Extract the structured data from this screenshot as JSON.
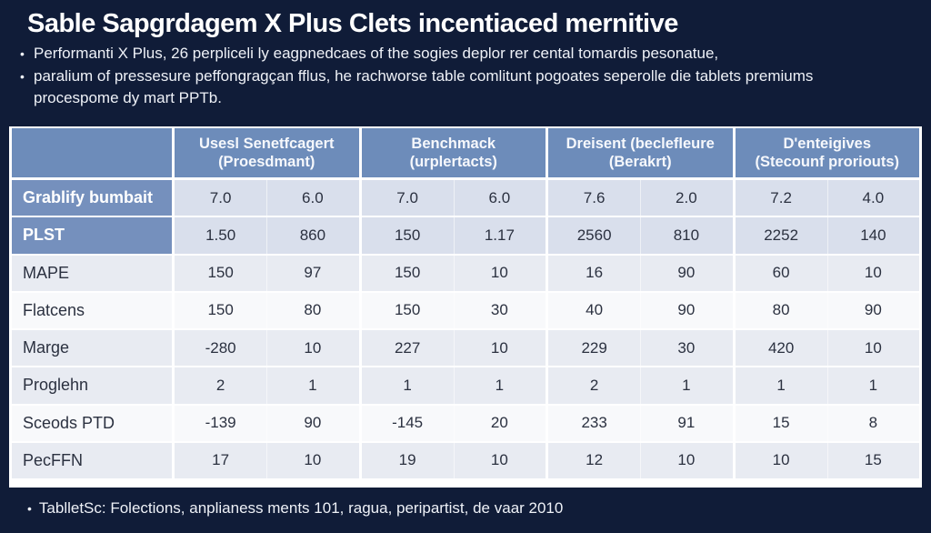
{
  "page": {
    "title": "Sable Sapgrdagem X Plus Clets incentiaced mernitive",
    "bullets": [
      "Performanti X Plus, 26 perpliceli ly eagpnedcaes of the sogies deplor rer cental tomardis pesonatue,",
      "paralium of pressesure peffongragçan fflus, he rachworse table comlitunt pogoates seperolle die tablets premiums procespome dy mart PPTb."
    ],
    "footnote": "TablletSc: Folections, anplianess ments 101, ragua, peripartist, de vaar 2010"
  },
  "colors": {
    "background": "#101c38",
    "header_blue": "#6d8cba",
    "label_blue": "#7590bd",
    "row_bluish": "#d9dfec",
    "row_light": "#e8ebf2",
    "row_white": "#f8f9fb",
    "text_dark": "#2b3140"
  },
  "table": {
    "columns": [
      {
        "line1": "Usesl Senetfcagert",
        "line2": "(Proesdmant)"
      },
      {
        "line1": "Benchmack",
        "line2": "(urplertacts)"
      },
      {
        "line1": "Dreisent (beclefleure",
        "line2": "(Berakrt)"
      },
      {
        "line1": "D'enteigives",
        "line2": "(Stecounf proriouts)"
      }
    ],
    "rows": [
      {
        "label": "Grablify bumbait",
        "style": "highlight",
        "values": [
          "7.0",
          "6.0",
          "7.0",
          "6.0",
          "7.6",
          "2.0",
          "7.2",
          "4.0"
        ]
      },
      {
        "label": "PLST",
        "style": "highlight",
        "values": [
          "1.50",
          "860",
          "150",
          "1.17",
          "2560",
          "810",
          "2252",
          "140"
        ]
      },
      {
        "label": "MAPE",
        "style": "light",
        "values": [
          "150",
          "97",
          "150",
          "10",
          "16",
          "90",
          "60",
          "10"
        ]
      },
      {
        "label": "Flatcens",
        "style": "white",
        "values": [
          "150",
          "80",
          "150",
          "30",
          "40",
          "90",
          "80",
          "90"
        ]
      },
      {
        "label": "Marge",
        "style": "light",
        "values": [
          "-280",
          "10",
          "227",
          "10",
          "229",
          "30",
          "420",
          "10"
        ]
      },
      {
        "label": "Proglehn",
        "style": "light",
        "values": [
          "2",
          "1",
          "1",
          "1",
          "2",
          "1",
          "1",
          "1"
        ]
      },
      {
        "label": "Sceods PTD",
        "style": "white",
        "values": [
          "-139",
          "90",
          "-145",
          "20",
          "233",
          "91",
          "15",
          "8"
        ]
      },
      {
        "label": "PecFFN",
        "style": "light",
        "values": [
          "17",
          "10",
          "19",
          "10",
          "12",
          "10",
          "10",
          "15"
        ]
      }
    ]
  },
  "chart_data": {
    "type": "table",
    "title": "Sable Sapgrdagem X Plus Clets incentiaced mernitive",
    "column_groups": [
      "Usesl Senetfcagert (Proesdmant)",
      "Benchmack (urplertacts)",
      "Dreisent (beclefleure (Berakrt)",
      "D'enteigives (Stecounf proriouts)"
    ],
    "row_labels": [
      "Grablify bumbait",
      "PLST",
      "MAPE",
      "Flatcens",
      "Marge",
      "Proglehn",
      "Sceods PTD",
      "PecFFN"
    ],
    "values": [
      [
        7.0,
        6.0,
        7.0,
        6.0,
        7.6,
        2.0,
        7.2,
        4.0
      ],
      [
        1.5,
        860,
        150,
        1.17,
        2560,
        810,
        2252,
        140
      ],
      [
        150,
        97,
        150,
        10,
        16,
        90,
        60,
        10
      ],
      [
        150,
        80,
        150,
        30,
        40,
        90,
        80,
        90
      ],
      [
        -280,
        10,
        227,
        10,
        229,
        30,
        420,
        10
      ],
      [
        2,
        1,
        1,
        1,
        2,
        1,
        1,
        1
      ],
      [
        -139,
        90,
        -145,
        20,
        233,
        91,
        15,
        8
      ],
      [
        17,
        10,
        19,
        10,
        12,
        10,
        10,
        15
      ]
    ]
  }
}
